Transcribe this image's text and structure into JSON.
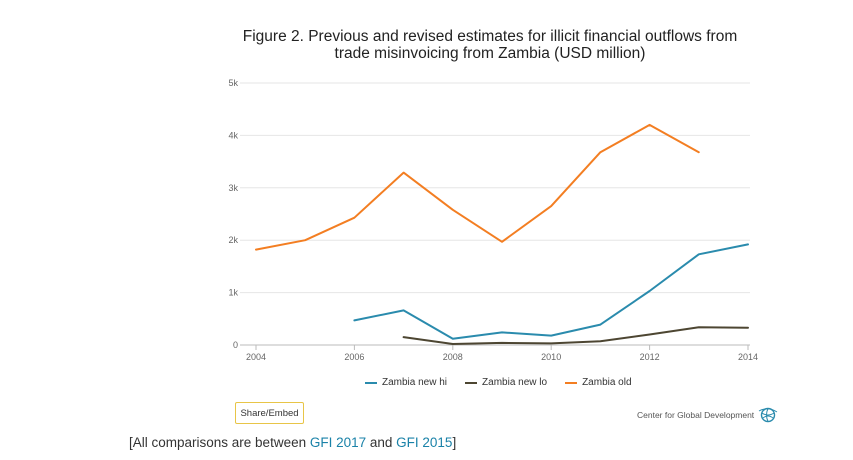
{
  "chart_data": {
    "type": "line",
    "title": "Figure 2. Previous and revised estimates for illicit financial outflows from trade misinvoicing from Zambia (USD million)",
    "x_ticks": [
      "2004",
      "2006",
      "2008",
      "2010",
      "2012",
      "2014"
    ],
    "y_ticks": [
      "0",
      "1k",
      "2k",
      "3k",
      "4k",
      "5k"
    ],
    "xlim": [
      2004,
      2014
    ],
    "ylim": [
      0,
      5000
    ],
    "series": [
      {
        "name": "Zambia new hi",
        "color": "#2a8bad",
        "x": [
          2006,
          2007,
          2008,
          2009,
          2010,
          2011,
          2012,
          2013,
          2014
        ],
        "values": [
          470,
          660,
          120,
          240,
          180,
          390,
          1030,
          1730,
          1920
        ]
      },
      {
        "name": "Zambia new lo",
        "color": "#4d4632",
        "x": [
          2007,
          2008,
          2009,
          2010,
          2011,
          2012,
          2013,
          2014
        ],
        "values": [
          150,
          20,
          40,
          30,
          70,
          200,
          340,
          330
        ]
      },
      {
        "name": "Zambia old",
        "color": "#f37e22",
        "x": [
          2004,
          2005,
          2006,
          2007,
          2008,
          2009,
          2010,
          2011,
          2012,
          2013
        ],
        "values": [
          1820,
          2000,
          2430,
          3290,
          2580,
          1970,
          2650,
          3680,
          4200,
          3680
        ]
      }
    ]
  },
  "share_label": "Share/Embed",
  "credit": "Center for Global Development",
  "footnote": {
    "prefix": "[All comparisons are between ",
    "link1": "GFI 2017",
    "middle": " and ",
    "link2": "GFI 2015",
    "suffix": "]"
  }
}
